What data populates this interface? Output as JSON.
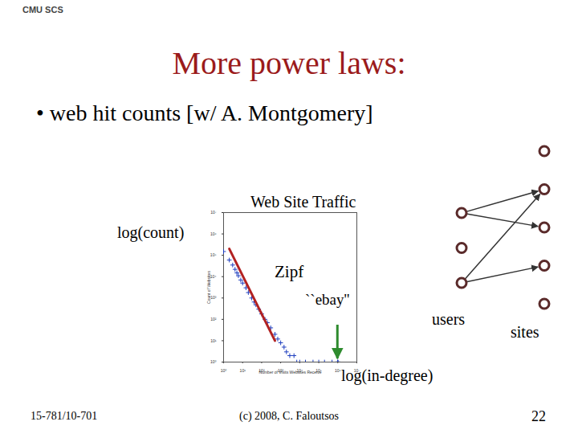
{
  "slide": {
    "header": "CMU SCS",
    "title": "More power laws:",
    "bullet": "• web hit counts [w/ A. Montgomery]",
    "footer_left": "15-781/10-701",
    "footer_center": "(c) 2008, C. Faloutsos",
    "page": "22"
  },
  "chart_data": {
    "type": "scatter",
    "title": "Web Site Traffic",
    "xlabel": "Number of Visits Websites Receive",
    "ylabel": "Count of Websites",
    "log": true,
    "color": "#1f3fbf",
    "marker": "plus",
    "x": [
      1,
      2,
      3,
      4,
      5,
      6,
      8,
      10,
      15,
      20,
      30,
      40,
      50,
      70,
      100,
      150,
      200,
      300,
      500,
      700,
      1000,
      1500,
      2000,
      3000,
      5000,
      7000,
      10000,
      20000,
      50000,
      100000,
      200000,
      500000,
      1000000
    ],
    "values": [
      150000,
      60000,
      35000,
      22000,
      15000,
      11000,
      7000,
      5000,
      3000,
      1800,
      1000,
      650,
      480,
      300,
      180,
      100,
      70,
      40,
      20,
      12,
      8,
      5,
      3,
      2,
      2,
      1,
      1,
      1,
      1,
      1,
      1,
      1,
      1
    ],
    "xlim": [
      1,
      10000000
    ],
    "ylim": [
      1,
      10000000
    ],
    "xticks": [
      {
        "value": 1,
        "label": "10⁰"
      },
      {
        "value": 10,
        "label": "10¹"
      },
      {
        "value": 100,
        "label": "10²"
      },
      {
        "value": 1000,
        "label": "10³"
      },
      {
        "value": 10000,
        "label": "10⁴"
      },
      {
        "value": 100000,
        "label": "10⁵"
      },
      {
        "value": 1000000,
        "label": "10⁶"
      },
      {
        "value": 10000000,
        "label": "10⁷"
      }
    ],
    "yticks": [
      {
        "value": 1,
        "label": "10⁰"
      },
      {
        "value": 10,
        "label": "10¹"
      },
      {
        "value": 100,
        "label": "10²"
      },
      {
        "value": 1000,
        "label": "10³"
      },
      {
        "value": 10000,
        "label": "10⁴"
      },
      {
        "value": 100000,
        "label": "10⁵"
      },
      {
        "value": 1000000,
        "label": "10⁶"
      },
      {
        "value": 10000000,
        "label": "10⁷"
      }
    ],
    "annotations": {
      "x_axis": "log(in-degree)",
      "y_axis": "log(count)"
    },
    "fit_line": {
      "label": "Zipf",
      "color": "#b22222",
      "x": [
        2,
        500
      ],
      "values": [
        200000,
        10
      ]
    },
    "highlight": {
      "label": "``ebay''",
      "color": "#2e8b2e",
      "x": 1000000,
      "value": 1
    }
  },
  "diagram": {
    "left_label": "users",
    "right_label": "sites",
    "left_nodes": 3,
    "right_nodes": 5,
    "edges": [
      [
        0,
        1
      ],
      [
        0,
        2
      ],
      [
        2,
        1
      ],
      [
        2,
        3
      ]
    ]
  }
}
